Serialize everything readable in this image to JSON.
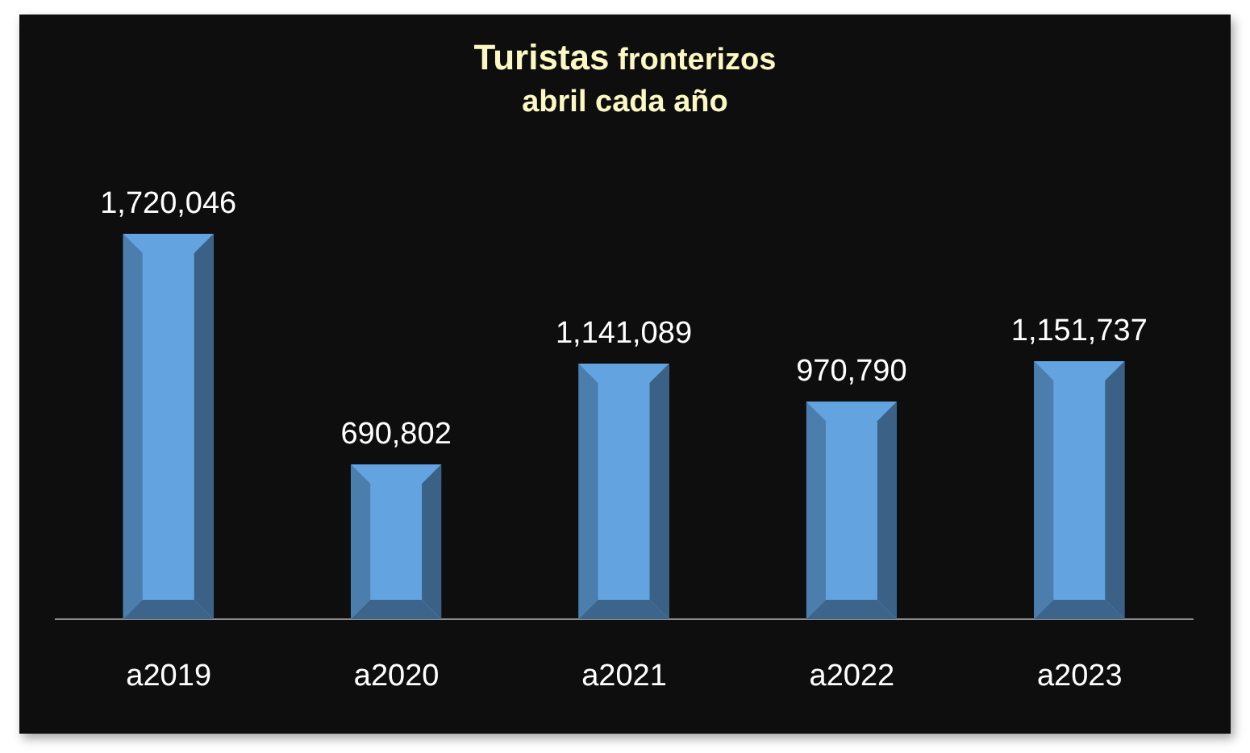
{
  "chart_data": {
    "type": "bar",
    "title": "Turistas fronterizos",
    "subtitle": "abril cada año",
    "categories": [
      "a2019",
      "a2020",
      "a2021",
      "a2022",
      "a2023"
    ],
    "values": [
      1720046,
      690802,
      1141089,
      970790,
      1151737
    ],
    "color": "#62a3e0",
    "value_labels": [
      "1,720,046",
      "690,802",
      "1,141,089",
      "970,790",
      "1,151,737"
    ],
    "tick_labels": "x"
  }
}
